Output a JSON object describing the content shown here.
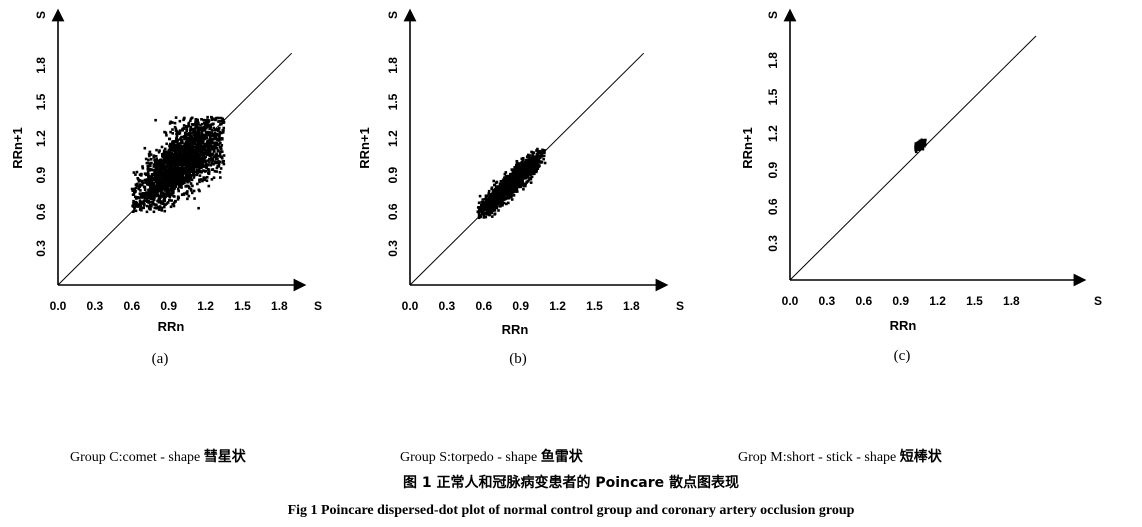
{
  "chart_data": [
    {
      "type": "scatter",
      "panel_label": "(a)",
      "xlabel": "RRn",
      "ylabel": "RRn+1",
      "unit": "S",
      "xticks": [
        "0.0",
        "0.3",
        "0.6",
        "0.9",
        "1.2",
        "1.5",
        "1.8"
      ],
      "yticks": [
        "0.3",
        "0.6",
        "0.9",
        "1.2",
        "1.5",
        "1.8"
      ],
      "xlim": [
        0,
        2.0
      ],
      "ylim": [
        0,
        2.0
      ],
      "identity_line": [
        0,
        1.9
      ],
      "cluster": {
        "shape": "comet",
        "x_range": [
          0.6,
          1.35
        ],
        "y_range": [
          0.6,
          1.38
        ],
        "center": [
          1.0,
          1.0
        ],
        "spread_along": 0.28,
        "spread_across": 0.09
      }
    },
    {
      "type": "scatter",
      "panel_label": "(b)",
      "xlabel": "RRn",
      "ylabel": "RRn+1",
      "unit": "S",
      "xticks": [
        "0.0",
        "0.3",
        "0.6",
        "0.9",
        "1.2",
        "1.5",
        "1.8"
      ],
      "yticks": [
        "0.3",
        "0.6",
        "0.9",
        "1.2",
        "1.5",
        "1.8"
      ],
      "xlim": [
        0,
        2.0
      ],
      "ylim": [
        0,
        2.0
      ],
      "identity_line": [
        0,
        1.9
      ],
      "cluster": {
        "shape": "torpedo",
        "x_range": [
          0.55,
          1.1
        ],
        "y_range": [
          0.55,
          1.12
        ],
        "center": [
          0.82,
          0.83
        ],
        "spread_along": 0.2,
        "spread_across": 0.035
      }
    },
    {
      "type": "scatter",
      "panel_label": "(c)",
      "xlabel": "RRn",
      "ylabel": "RRn+1",
      "unit": "S",
      "xticks": [
        "0.0",
        "0.3",
        "0.6",
        "0.9",
        "1.2",
        "1.5",
        "1.8"
      ],
      "yticks": [
        "0.3",
        "0.6",
        "0.9",
        "1.2",
        "1.5",
        "1.8"
      ],
      "xlim": [
        0,
        2.0
      ],
      "ylim": [
        0,
        2.0
      ],
      "identity_line": [
        0,
        2.0
      ],
      "cluster": {
        "shape": "short-stick",
        "x_range": [
          1.02,
          1.1
        ],
        "y_range": [
          1.05,
          1.15
        ],
        "center": [
          1.06,
          1.11
        ],
        "spread_along": 0.035,
        "spread_across": 0.012
      }
    }
  ],
  "groups": [
    {
      "en": "Group C:comet - shape",
      "cn": "彗星状"
    },
    {
      "en": "Group S:torpedo - shape",
      "cn": "鱼雷状"
    },
    {
      "en": "Grop M:short - stick - shape",
      "cn": "短棒状"
    }
  ],
  "figure": {
    "cn_title": "图 1   正常人和冠脉病变患者的 Poincare 散点图表现",
    "en_title": "Fig 1   Poincare dispersed-dot plot of normal control group and coronary artery occlusion group"
  }
}
